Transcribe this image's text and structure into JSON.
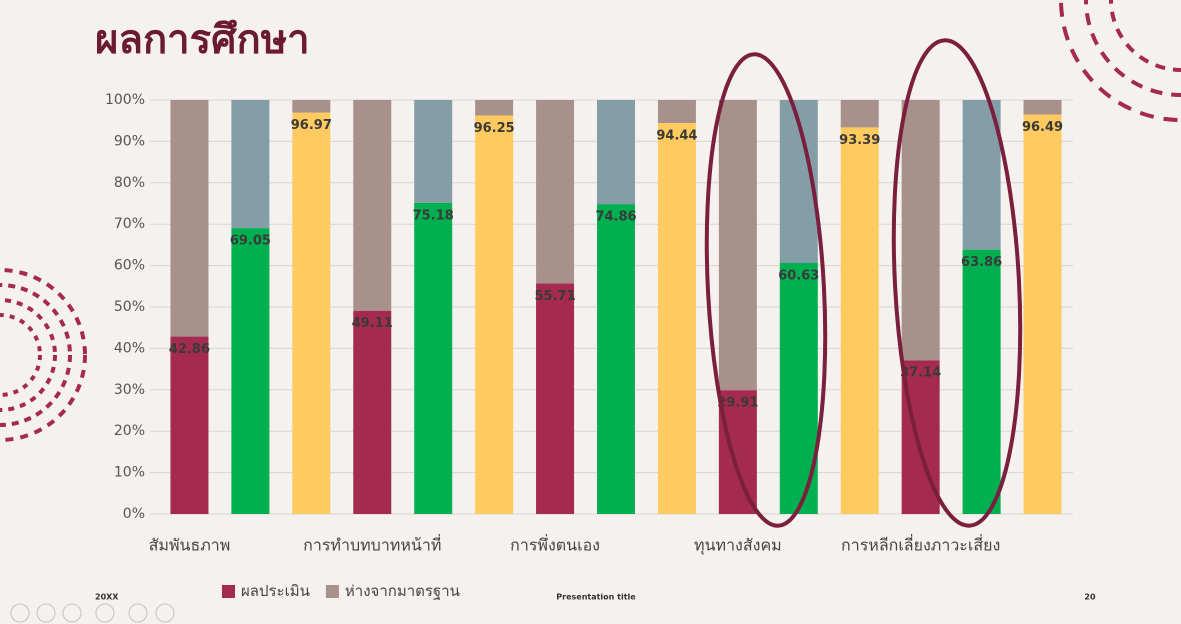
{
  "title": "ผลการศึกษา",
  "chart_data": {
    "type": "stacked_bar",
    "categories": [
      "สัมพันธภาพ",
      null,
      null,
      "การทำบทบาทหน้าที่",
      null,
      null,
      "การพึ่งตนเอง",
      null,
      null,
      "ทุนทางสังคม",
      null,
      null,
      "การหลีกเลี่ยงภาวะเสี่ยง",
      null,
      null
    ],
    "series": [
      {
        "name": "ผลประเมิน",
        "color": "#a52a4f",
        "colors": [
          "#a52a4f",
          "#00b050",
          "#ffca5f",
          "#a52a4f",
          "#00b050",
          "#ffca5f",
          "#a52a4f",
          "#00b050",
          "#ffca5f",
          "#a52a4f",
          "#00b050",
          "#ffca5f",
          "#a52a4f",
          "#00b050",
          "#ffca5f"
        ],
        "values": [
          42.86,
          69.05,
          96.97,
          49.11,
          75.18,
          96.25,
          55.71,
          74.86,
          94.44,
          29.91,
          60.63,
          93.39,
          37.14,
          63.86,
          96.49
        ]
      },
      {
        "name": "ห่างจากมาตรฐาน",
        "color": "#a8918a",
        "colors": [
          "#a8918a",
          "#849ea7",
          "#a8918a",
          "#a8918a",
          "#849ea7",
          "#a8918a",
          "#a8918a",
          "#849ea7",
          "#a8918a",
          "#a8918a",
          "#849ea7",
          "#a8918a",
          "#a8918a",
          "#849ea7",
          "#a8918a"
        ],
        "values": [
          57.14,
          30.95,
          3.03,
          50.89,
          24.82,
          3.75,
          44.29,
          25.14,
          5.56,
          70.09,
          39.37,
          6.61,
          62.86,
          36.14,
          3.51
        ]
      }
    ],
    "ylim": [
      0,
      100
    ],
    "yticks": [
      {
        "value": 0,
        "label": "0%"
      },
      {
        "value": 10,
        "label": "10%"
      },
      {
        "value": 20,
        "label": "20%"
      },
      {
        "value": 30,
        "label": "30%"
      },
      {
        "value": 40,
        "label": "40%"
      },
      {
        "value": 50,
        "label": "50%"
      },
      {
        "value": 60,
        "label": "60%"
      },
      {
        "value": 70,
        "label": "70%"
      },
      {
        "value": 80,
        "label": "80%"
      },
      {
        "value": 90,
        "label": "90%"
      },
      {
        "value": 100,
        "label": "100%"
      }
    ],
    "grid": true,
    "data_labels_series": 0
  },
  "footer": {
    "left": "20XX",
    "center": "Presentation title",
    "page": "20"
  }
}
